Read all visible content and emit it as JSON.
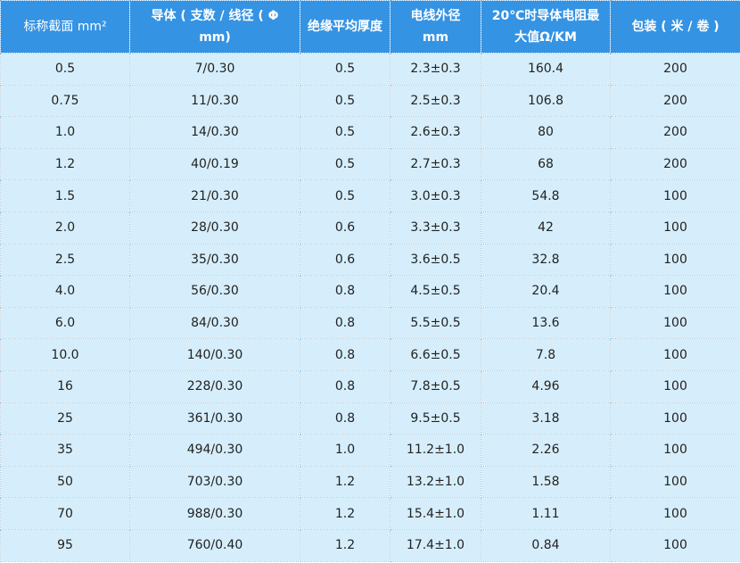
{
  "table": {
    "header": [
      "标称截面 mm²",
      "导体 ( 支数 / 线径 ( Φ mm)",
      "绝缘平均厚度",
      "电线外径 mm",
      "20℃时导体电阻最大值Ω/KM",
      "包装 ( 米 / 卷 )"
    ],
    "rows": [
      [
        "0.5",
        "7/0.30",
        "0.5",
        "2.3±0.3",
        "160.4",
        "200"
      ],
      [
        "0.75",
        "11/0.30",
        "0.5",
        "2.5±0.3",
        "106.8",
        "200"
      ],
      [
        "1.0",
        "14/0.30",
        "0.5",
        "2.6±0.3",
        "80",
        "200"
      ],
      [
        "1.2",
        "40/0.19",
        "0.5",
        "2.7±0.3",
        "68",
        "200"
      ],
      [
        "1.5",
        "21/0.30",
        "0.5",
        "3.0±0.3",
        "54.8",
        "100"
      ],
      [
        "2.0",
        "28/0.30",
        "0.6",
        "3.3±0.3",
        "42",
        "100"
      ],
      [
        "2.5",
        "35/0.30",
        "0.6",
        "3.6±0.5",
        "32.8",
        "100"
      ],
      [
        "4.0",
        "56/0.30",
        "0.8",
        "4.5±0.5",
        "20.4",
        "100"
      ],
      [
        "6.0",
        "84/0.30",
        "0.8",
        "5.5±0.5",
        "13.6",
        "100"
      ],
      [
        "10.0",
        "140/0.30",
        "0.8",
        "6.6±0.5",
        "7.8",
        "100"
      ],
      [
        "16",
        "228/0.30",
        "0.8",
        "7.8±0.5",
        "4.96",
        "100"
      ],
      [
        "25",
        "361/0.30",
        "0.8",
        "9.5±0.5",
        "3.18",
        "100"
      ],
      [
        "35",
        "494/0.30",
        "1.0",
        "11.2±1.0",
        "2.26",
        "100"
      ],
      [
        "50",
        "703/0.30",
        "1.2",
        "13.2±1.0",
        "1.58",
        "100"
      ],
      [
        "70",
        "988/0.30",
        "1.2",
        "15.4±1.0",
        "1.11",
        "100"
      ],
      [
        "95",
        "760/0.40",
        "1.2",
        "17.4±1.0",
        "0.84",
        "100"
      ]
    ]
  }
}
